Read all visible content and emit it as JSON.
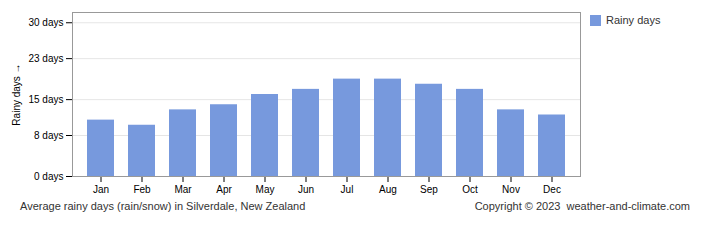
{
  "chart_data": {
    "type": "bar",
    "categories": [
      "Jan",
      "Feb",
      "Mar",
      "Apr",
      "May",
      "Jun",
      "Jul",
      "Aug",
      "Sep",
      "Oct",
      "Nov",
      "Dec"
    ],
    "series": [
      {
        "name": "Rainy days",
        "color": "#7799dd",
        "values": [
          11,
          10,
          13,
          14,
          16,
          17,
          19,
          19,
          18,
          17,
          13,
          12
        ]
      }
    ],
    "ylabel": "Rainy days",
    "ylim": [
      0,
      32
    ],
    "yticks": [
      {
        "value": 0,
        "label": "0 days"
      },
      {
        "value": 8,
        "label": "8 days"
      },
      {
        "value": 15,
        "label": "15 days"
      },
      {
        "value": 23,
        "label": "23 days"
      },
      {
        "value": 30,
        "label": "30 days"
      }
    ],
    "grid": true,
    "legend": "right",
    "annotations": [
      "Average rainy days (rain/snow) in Silverdale, New Zealand",
      "Copyright © 2023  weather-and-climate.com"
    ]
  }
}
